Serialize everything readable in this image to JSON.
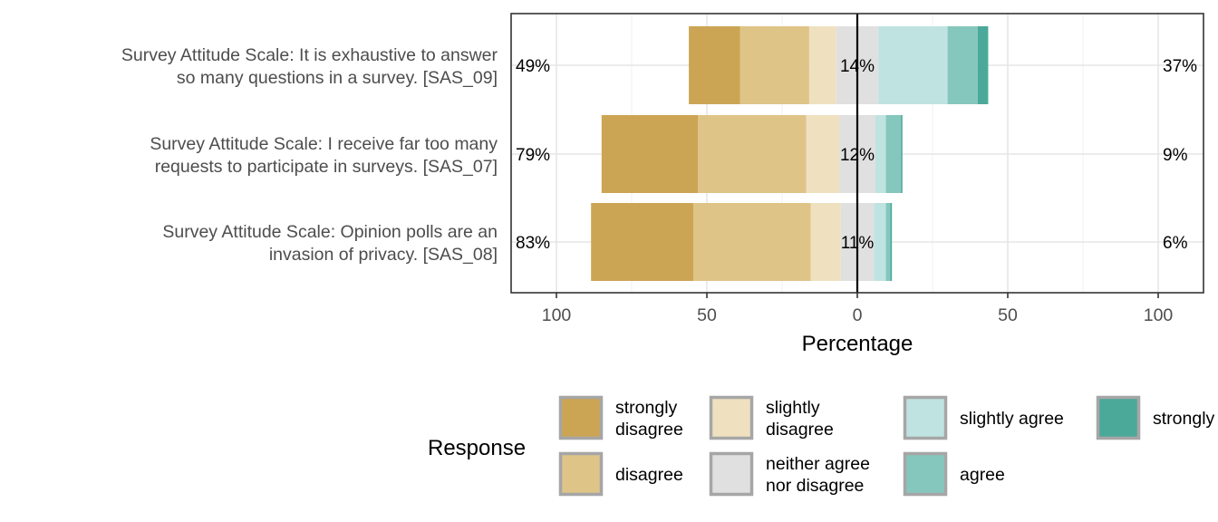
{
  "chart_data": {
    "type": "bar",
    "orientation": "horizontal",
    "stacked": "diverging",
    "xlabel": "Percentage",
    "xlim": [
      -115,
      115
    ],
    "xticks": [
      {
        "value": -100,
        "label": "100"
      },
      {
        "value": -50,
        "label": "50"
      },
      {
        "value": 0,
        "label": "0"
      },
      {
        "value": 50,
        "label": "50"
      },
      {
        "value": 100,
        "label": "100"
      }
    ],
    "grid": true,
    "legend_title": "Response",
    "legend_position": "bottom",
    "categories": [
      {
        "line1": "Survey Attitude Scale: It is exhaustive to answer",
        "line2": "so many questions in a survey. [SAS_09]"
      },
      {
        "line1": "Survey Attitude Scale: I receive far too many",
        "line2": "requests to participate in surveys. [SAS_07]"
      },
      {
        "line1": "Survey Attitude Scale: Opinion polls are an",
        "line2": "invasion of privacy. [SAS_08]"
      }
    ],
    "series": [
      {
        "name": "strongly disagree",
        "color": "#CCA554",
        "values": [
          17,
          32,
          34
        ]
      },
      {
        "name": "disagree",
        "color": "#DFC488",
        "values": [
          23,
          36,
          39
        ]
      },
      {
        "name": "slightly disagree",
        "color": "#EFE1C0",
        "values": [
          9,
          11,
          10
        ]
      },
      {
        "name": "neither agree nor disagree",
        "color": "#E0E0E0",
        "values": [
          14,
          12,
          11
        ]
      },
      {
        "name": "slightly agree",
        "color": "#BFE3E0",
        "values": [
          23,
          3.5,
          4
        ]
      },
      {
        "name": "agree",
        "color": "#86C7BD",
        "values": [
          10,
          5,
          1.5
        ]
      },
      {
        "name": "strongly agree",
        "color": "#4BA99A",
        "values": [
          3.5,
          0.5,
          0.5
        ]
      }
    ],
    "left_labels": [
      "49%",
      "79%",
      "83%"
    ],
    "center_labels": [
      "14%",
      "12%",
      "11%"
    ],
    "right_labels": [
      "37%",
      "9%",
      "6%"
    ],
    "legend_entries": [
      {
        "lines": [
          "strongly",
          "disagree"
        ]
      },
      {
        "lines": [
          "disagree"
        ]
      },
      {
        "lines": [
          "slightly",
          "disagree"
        ]
      },
      {
        "lines": [
          "neither agree",
          "nor disagree"
        ]
      },
      {
        "lines": [
          "slightly agree"
        ]
      },
      {
        "lines": [
          "agree"
        ]
      },
      {
        "lines": [
          "strongly agree"
        ]
      }
    ]
  }
}
